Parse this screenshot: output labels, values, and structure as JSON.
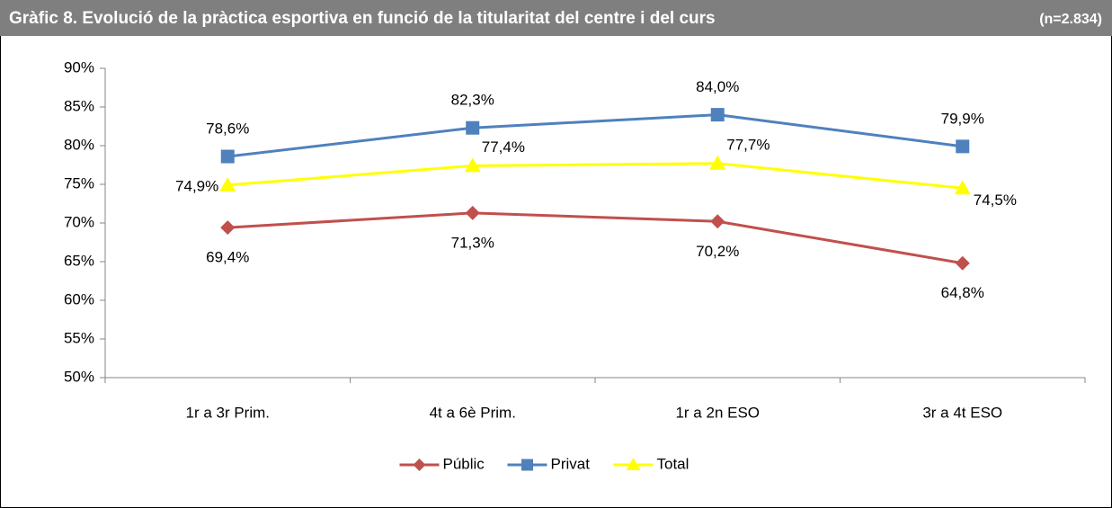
{
  "chart_data": {
    "type": "line",
    "title": "Gràfic 8. Evolució de la pràctica esportiva en funció de la titularitat del centre i del curs",
    "subtitle": "(n=2.834)",
    "categories": [
      "1r a 3r Prim.",
      "4t a 6è Prim.",
      "1r a 2n ESO",
      "3r a 4t ESO"
    ],
    "series": [
      {
        "name": "Públic",
        "color": "#c0504d",
        "marker": "diamond",
        "values": [
          69.4,
          71.3,
          70.2,
          64.8
        ],
        "value_labels": [
          "69,4%",
          "71,3%",
          "70,2%",
          "64,8%"
        ]
      },
      {
        "name": "Privat",
        "color": "#4f81bd",
        "marker": "square",
        "values": [
          78.6,
          82.3,
          84.0,
          79.9
        ],
        "value_labels": [
          "78,6%",
          "82,3%",
          "84,0%",
          "79,9%"
        ]
      },
      {
        "name": "Total",
        "color": "#ffff00",
        "marker": "triangle",
        "values": [
          74.9,
          77.4,
          77.7,
          74.5
        ],
        "value_labels": [
          "74,9%",
          "77,4%",
          "77,7%",
          "74,5%"
        ]
      }
    ],
    "ylim": [
      50,
      90
    ],
    "yticks": [
      {
        "value": 50,
        "label": "50%"
      },
      {
        "value": 55,
        "label": "55%"
      },
      {
        "value": 60,
        "label": "60%"
      },
      {
        "value": 65,
        "label": "65%"
      },
      {
        "value": 70,
        "label": "70%"
      },
      {
        "value": 75,
        "label": "75%"
      },
      {
        "value": 80,
        "label": "80%"
      },
      {
        "value": 85,
        "label": "85%"
      },
      {
        "value": 90,
        "label": "90%"
      }
    ],
    "legend": "bottom"
  }
}
